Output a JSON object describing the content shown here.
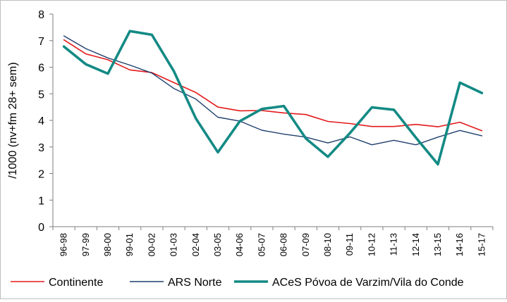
{
  "chart_data": {
    "type": "line",
    "title": "",
    "xlabel": "",
    "ylabel": "/1000 (nv+fm 28+ sem)",
    "ylim": [
      0,
      8
    ],
    "yticks": [
      0,
      1,
      2,
      3,
      4,
      5,
      6,
      7,
      8
    ],
    "grid": false,
    "legend_position": "bottom",
    "categories": [
      "96-98",
      "97-99",
      "98-00",
      "99-01",
      "00-02",
      "01-03",
      "02-04",
      "03-05",
      "04-06",
      "05-07",
      "06-08",
      "07-09",
      "08-10",
      "09-11",
      "10-12",
      "11-13",
      "12-14",
      "13-15",
      "14-16",
      "15-17"
    ],
    "series": [
      {
        "name": "Continente",
        "color": "#e31a1c",
        "values": [
          7.03,
          6.5,
          6.28,
          5.9,
          5.8,
          5.42,
          5.05,
          4.5,
          4.36,
          4.37,
          4.28,
          4.22,
          3.96,
          3.88,
          3.77,
          3.77,
          3.85,
          3.76,
          3.93,
          3.61
        ]
      },
      {
        "name": "ARS Norte",
        "color": "#1f3f6e",
        "values": [
          7.18,
          6.7,
          6.35,
          6.08,
          5.78,
          5.2,
          4.8,
          4.12,
          3.97,
          3.63,
          3.48,
          3.37,
          3.15,
          3.38,
          3.08,
          3.25,
          3.08,
          3.37,
          3.62,
          3.42
        ]
      },
      {
        "name": "ACeS Póvoa de Varzim/Vila do Conde",
        "color": "#138a84",
        "values": [
          6.78,
          6.11,
          5.76,
          7.36,
          7.22,
          5.85,
          4.07,
          2.8,
          3.97,
          4.43,
          4.54,
          3.32,
          2.63,
          3.52,
          4.49,
          4.4,
          3.35,
          2.35,
          5.42,
          5.03
        ]
      }
    ]
  }
}
